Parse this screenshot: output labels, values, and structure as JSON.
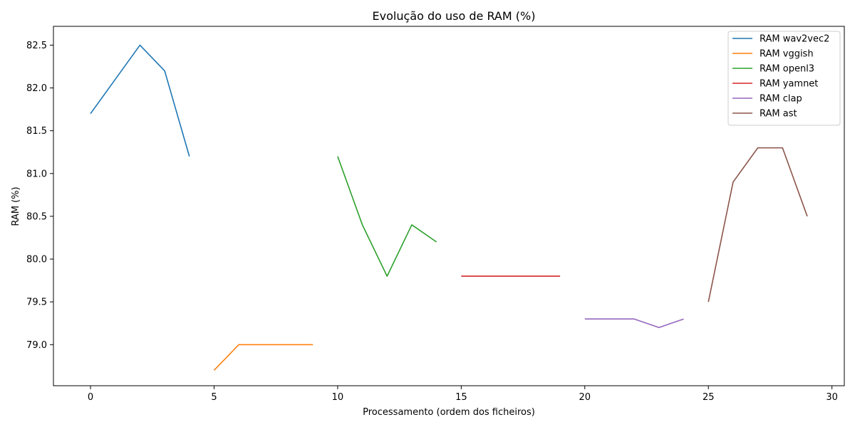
{
  "chart_data": {
    "type": "line",
    "title": "Evolução do uso de RAM (%)",
    "xlabel": "Processamento (ordem dos ficheiros)",
    "ylabel": "RAM (%)",
    "xlim": [
      -1.5,
      30.5
    ],
    "ylim": [
      78.52,
      82.72
    ],
    "xticks": [
      0,
      5,
      10,
      15,
      20,
      25,
      30
    ],
    "yticks": [
      79.0,
      79.5,
      80.0,
      80.5,
      81.0,
      81.5,
      82.0,
      82.5
    ],
    "ytick_labels": [
      "79.0",
      "79.5",
      "80.0",
      "80.5",
      "81.0",
      "81.5",
      "82.0",
      "82.5"
    ],
    "grid": false,
    "legend_position": "top-right",
    "series": [
      {
        "name": "RAM wav2vec2",
        "color": "#1f77b4",
        "x": [
          0,
          1,
          2,
          3,
          4
        ],
        "y": [
          81.7,
          82.1,
          82.5,
          82.2,
          81.2
        ]
      },
      {
        "name": "RAM vggish",
        "color": "#ff7f0e",
        "x": [
          5,
          6,
          7,
          8,
          9
        ],
        "y": [
          78.7,
          79.0,
          79.0,
          79.0,
          79.0
        ]
      },
      {
        "name": "RAM openl3",
        "color": "#2ca02c",
        "x": [
          10,
          11,
          12,
          13,
          14
        ],
        "y": [
          81.2,
          80.4,
          79.8,
          80.4,
          80.2
        ]
      },
      {
        "name": "RAM yamnet",
        "color": "#d62728",
        "x": [
          15,
          16,
          17,
          18,
          19
        ],
        "y": [
          79.8,
          79.8,
          79.8,
          79.8,
          79.8
        ]
      },
      {
        "name": "RAM clap",
        "color": "#9467bd",
        "x": [
          20,
          21,
          22,
          23,
          24
        ],
        "y": [
          79.3,
          79.3,
          79.3,
          79.2,
          79.3
        ]
      },
      {
        "name": "RAM ast",
        "color": "#8c564b",
        "x": [
          25,
          26,
          27,
          28,
          29
        ],
        "y": [
          79.5,
          80.9,
          81.3,
          81.3,
          80.5
        ]
      }
    ]
  }
}
